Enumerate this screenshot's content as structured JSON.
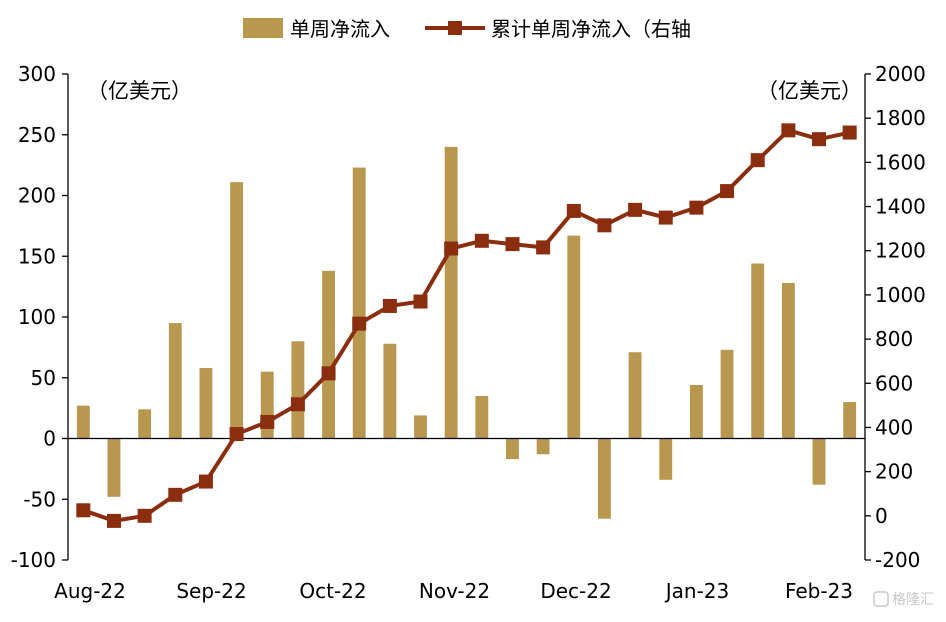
{
  "chart_data": {
    "type": "bar",
    "legend": [
      {
        "label": "单周净流入",
        "marker": "bar"
      },
      {
        "label": "累计单周净流入（右轴",
        "marker": "line-square"
      }
    ],
    "unit_left": "（亿美元）",
    "unit_right": "（亿美元）",
    "x_tick_labels": [
      "Aug-22",
      "Sep-22",
      "Oct-22",
      "Nov-22",
      "Dec-22",
      "Jan-23",
      "Feb-23"
    ],
    "left_axis": {
      "ylim": [
        -100,
        300
      ],
      "ticks": [
        "300",
        "250",
        "200",
        "150",
        "100",
        "50",
        "0",
        "-50",
        "-100"
      ]
    },
    "right_axis": {
      "ylim": [
        -200,
        2000
      ],
      "ticks": [
        "2000",
        "1800",
        "1600",
        "1400",
        "1200",
        "1000",
        "800",
        "600",
        "400",
        "200",
        "0",
        "-200"
      ]
    },
    "series": [
      {
        "name": "单周净流入",
        "type": "bar",
        "axis": "left",
        "color": "#b8974f",
        "values": [
          27,
          -48,
          24,
          95,
          58,
          211,
          55,
          80,
          138,
          223,
          78,
          19,
          240,
          35,
          -17,
          -13,
          167,
          -66,
          71,
          -34,
          44,
          73,
          144,
          128,
          -38,
          30
        ]
      },
      {
        "name": "累计单周净流入（右轴",
        "type": "line",
        "axis": "right",
        "color": "#8b2d0f",
        "values": [
          25,
          -23,
          0,
          95,
          155,
          370,
          425,
          505,
          645,
          870,
          950,
          970,
          1210,
          1245,
          1230,
          1215,
          1380,
          1315,
          1385,
          1350,
          1395,
          1470,
          1610,
          1745,
          1705,
          1735
        ]
      }
    ],
    "grid": false,
    "legend_position": "top-center"
  },
  "watermark": {
    "text": "格隆汇"
  },
  "colors": {
    "bar": "#b8974f",
    "line": "#8b2d0f",
    "axis": "#000000"
  }
}
